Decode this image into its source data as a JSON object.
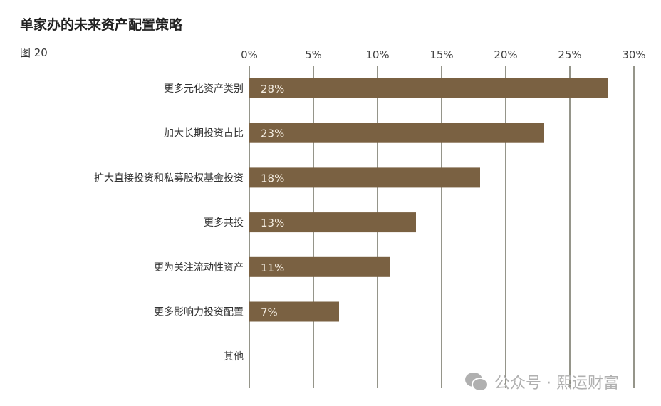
{
  "title": "单家办的未来资产配置策略",
  "figure_label": "图 20",
  "watermark": "公众号 · 熙运财富",
  "chart_data": {
    "type": "bar",
    "orientation": "horizontal",
    "title": "单家办的未来资产配置策略",
    "categories": [
      "更多元化资产类别",
      "加大长期投资占比",
      "扩大直接投资和私募股权基金投资",
      "更多共投",
      "更为关注流动性资产",
      "更多影响力投资配置",
      "其他"
    ],
    "values": [
      28,
      23,
      18,
      13,
      11,
      7,
      null
    ],
    "data_labels": [
      "28%",
      "23%",
      "18%",
      "13%",
      "11%",
      "7%",
      ""
    ],
    "xlim": [
      0,
      30
    ],
    "xticks": [
      "0%",
      "5%",
      "10%",
      "15%",
      "20%",
      "25%",
      "30%"
    ],
    "grid": true,
    "axis_position": "top",
    "bar_color": "#7a6142",
    "grid_color": "#5c5c4c",
    "label_color": "#f3ece0"
  }
}
